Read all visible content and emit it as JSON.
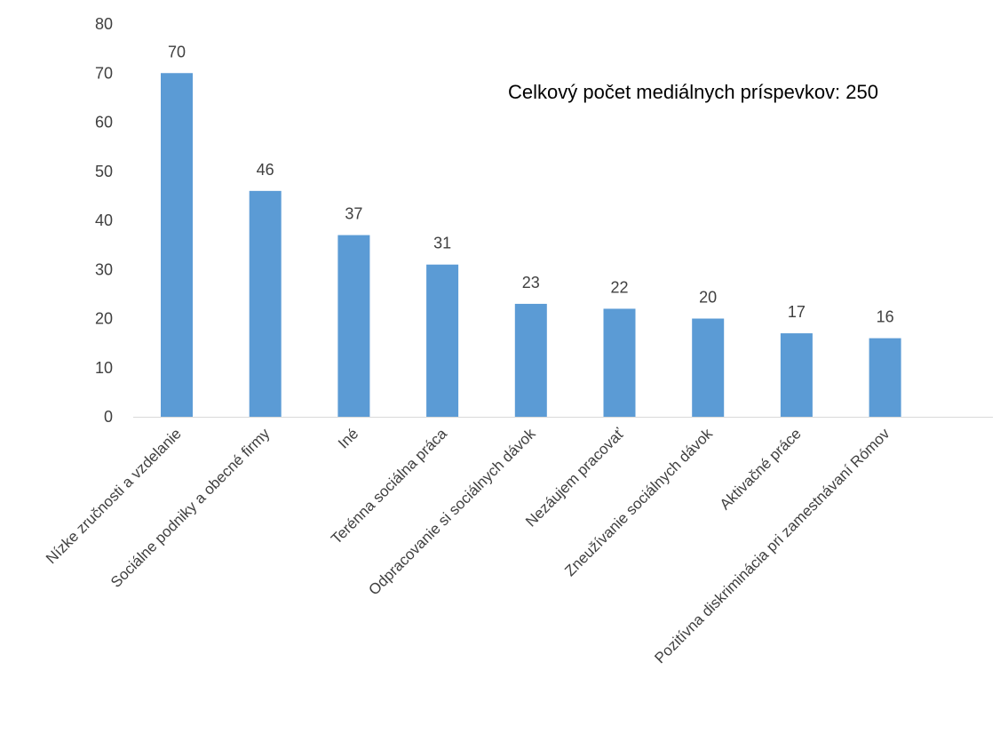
{
  "chart_data": {
    "type": "bar",
    "categories": [
      "Nízke zručnosti a vzdelanie",
      "Sociálne podniky a obecné firmy",
      "Iné",
      "Terénna sociálna práca",
      "Odpracovanie si sociálnych dávok",
      "Nezáujem pracovať",
      "Zneužívanie sociálnych dávok",
      "Aktivačné práce",
      "Pozitívna diskriminácia pri zamestnávaní Rómov"
    ],
    "values": [
      70,
      46,
      37,
      31,
      23,
      22,
      20,
      17,
      16
    ],
    "data_labels": [
      "70",
      "46",
      "37",
      "31",
      "23",
      "22",
      "20",
      "17",
      "16"
    ],
    "ylim": [
      0,
      80
    ],
    "y_ticks": [
      "0",
      "10",
      "20",
      "30",
      "40",
      "50",
      "60",
      "70",
      "80"
    ],
    "annotation": "Celkový počet mediálnych príspevkov: 250",
    "title": "",
    "xlabel": "",
    "ylabel": "",
    "grid": false,
    "legend": "none",
    "bar_color": "#5b9bd5",
    "axis_color": "#d9d9d9"
  }
}
